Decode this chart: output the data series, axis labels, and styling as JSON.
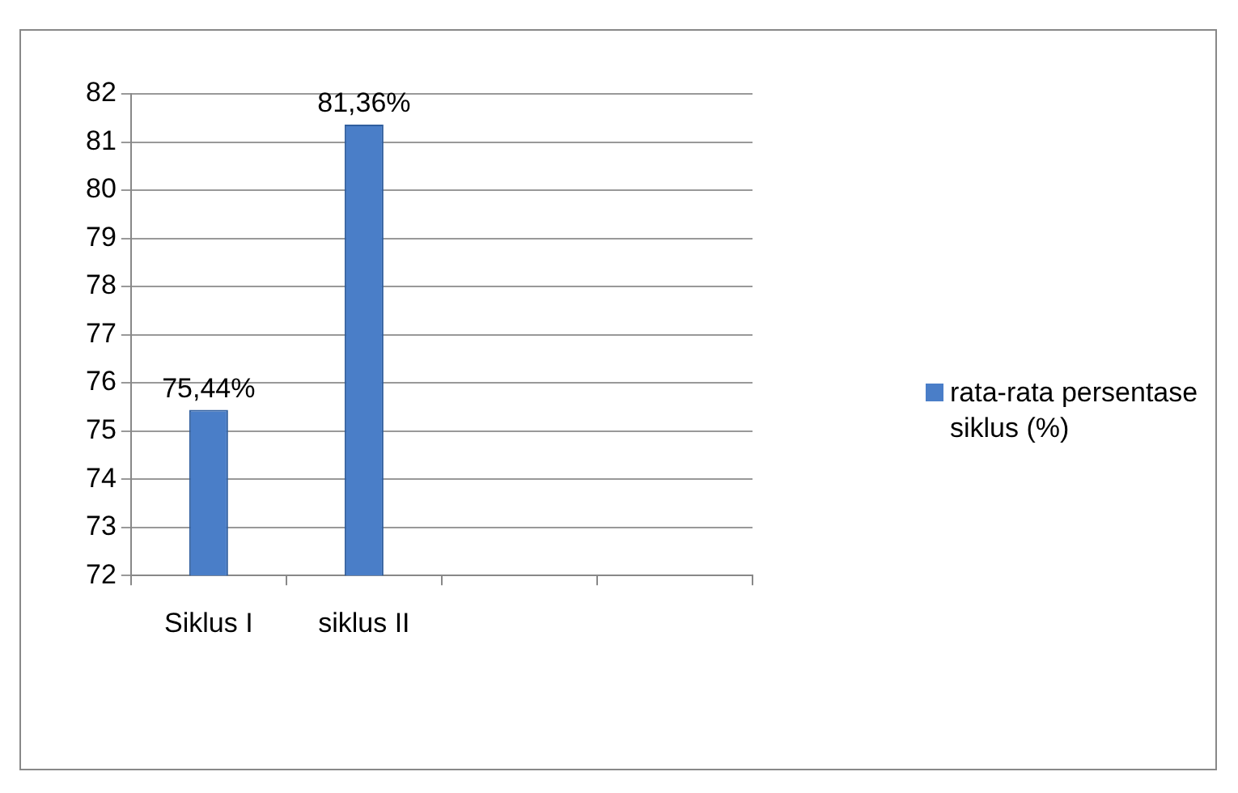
{
  "chart_data": {
    "type": "bar",
    "categories": [
      "Siklus I",
      "siklus II",
      null,
      null
    ],
    "series": [
      {
        "name": "rata-rata persentase siklus (%)",
        "color": "#4a7ec8",
        "values": [
          75.44,
          81.36,
          null,
          null
        ],
        "value_labels": [
          "75,44%",
          "81,36%",
          null,
          null
        ]
      }
    ],
    "ylim": [
      72,
      82
    ],
    "yticks": [
      72,
      73,
      74,
      75,
      76,
      77,
      78,
      79,
      80,
      81,
      82
    ],
    "grid": "y",
    "legend": "right"
  }
}
